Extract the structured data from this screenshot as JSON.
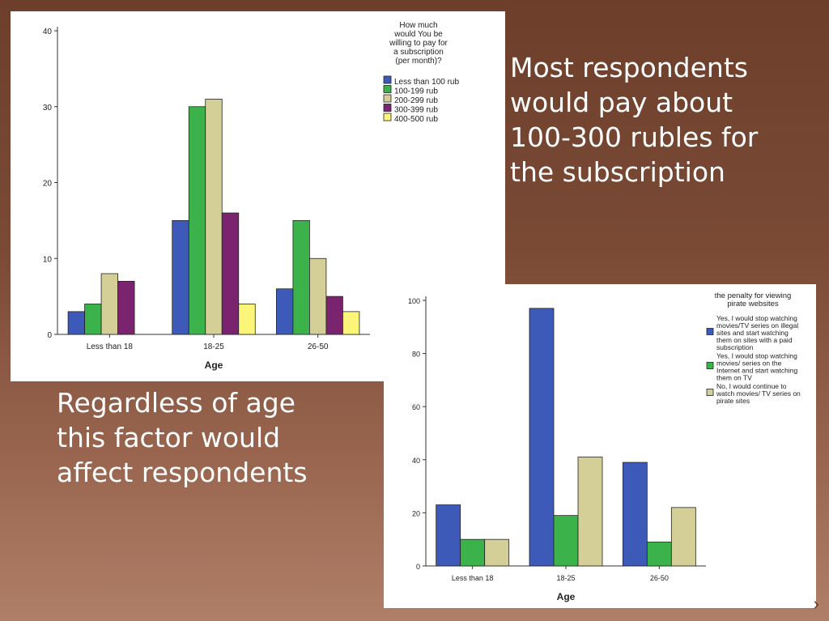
{
  "slide": {
    "text_top": "Most respondents\nwould pay about\n100-300 rubles for\nthe subscription",
    "text_bottom": "Regardless of age\nthis factor would\naffect respondents"
  },
  "chart_data": [
    {
      "type": "bar",
      "xlabel": "Age",
      "ylabel": "",
      "categories": [
        "Less than 18",
        "18-25",
        "26-50"
      ],
      "ylim": [
        0,
        40
      ],
      "yticks": [
        0,
        10,
        20,
        30,
        40
      ],
      "legend_title": "How much\nwould You be\nwilling to pay for\na subscription\n(per month)?",
      "legend_position": "top-right",
      "series": [
        {
          "name": "Less than 100 rub",
          "color": "#3e5ab8",
          "values": [
            3,
            15,
            6
          ]
        },
        {
          "name": "100-199 rub",
          "color": "#3cb34a",
          "values": [
            4,
            30,
            15
          ]
        },
        {
          "name": "200-299 rub",
          "color": "#d4cf97",
          "values": [
            8,
            31,
            10
          ]
        },
        {
          "name": "300-399 rub",
          "color": "#7a236f",
          "values": [
            7,
            16,
            5
          ]
        },
        {
          "name": "400-500 rub",
          "color": "#fbf57a",
          "values": [
            0,
            4,
            3
          ]
        }
      ]
    },
    {
      "type": "bar",
      "xlabel": "Age",
      "ylabel": "",
      "categories": [
        "Less than 18",
        "18-25",
        "26-50"
      ],
      "ylim": [
        0,
        100
      ],
      "yticks": [
        0,
        20,
        40,
        60,
        80,
        100
      ],
      "legend_title": "the penalty for viewing\npirate websites",
      "legend_position": "top-right",
      "series": [
        {
          "name": "Yes, I would stop watching\nmovies/TV series on illegal\nsites and start watching\nthem on sites with a paid\nsubscription",
          "color": "#3e5ab8",
          "values": [
            23,
            97,
            39
          ]
        },
        {
          "name": "Yes, I would stop watching\nmovies/ series on the\nInternet and start watching\nthem on TV",
          "color": "#3cb34a",
          "values": [
            10,
            19,
            9
          ]
        },
        {
          "name": "No, I would continue to\nwatch movies/ TV series on\npirate sites",
          "color": "#d4cf97",
          "values": [
            10,
            41,
            22
          ]
        }
      ]
    }
  ]
}
